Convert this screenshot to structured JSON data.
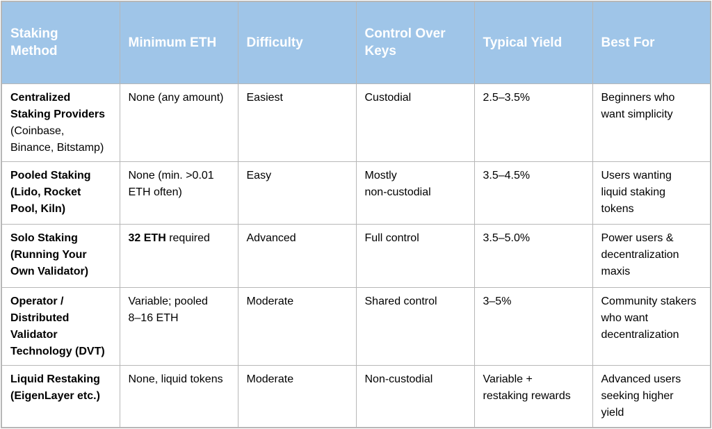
{
  "colors": {
    "header_bg": "#9fc5e8",
    "header_text": "#ffffff",
    "body_text": "#000000",
    "row_bg": "#ffffff",
    "grid_line": "#b7b7b7"
  },
  "table": {
    "columns": [
      {
        "id": "staking-method",
        "label": "Staking\nMethod"
      },
      {
        "id": "minimum-eth",
        "label": "Minimum ETH"
      },
      {
        "id": "difficulty",
        "label": "Difficulty"
      },
      {
        "id": "control-over-keys",
        "label": "Control Over\nKeys"
      },
      {
        "id": "typical-yield",
        "label": "Typical Yield"
      },
      {
        "id": "best-for",
        "label": "Best For"
      }
    ],
    "rows": [
      {
        "id": "centralized",
        "cells": [
          [
            {
              "t": "Centralized\nStaking Providers\n",
              "b": true
            },
            {
              "t": "(Coinbase,\nBinance, Bitstamp)",
              "b": false
            }
          ],
          [
            {
              "t": "None (any amount)",
              "b": false
            }
          ],
          [
            {
              "t": "Easiest",
              "b": false
            }
          ],
          [
            {
              "t": "Custodial",
              "b": false
            }
          ],
          [
            {
              "t": "2.5–3.5%",
              "b": false
            }
          ],
          [
            {
              "t": "Beginners who\nwant simplicity",
              "b": false
            }
          ]
        ]
      },
      {
        "id": "pooled",
        "cells": [
          [
            {
              "t": "Pooled Staking\n(Lido, Rocket\nPool, Kiln)",
              "b": true
            }
          ],
          [
            {
              "t": "None (min. >0.01\nETH often)",
              "b": false
            }
          ],
          [
            {
              "t": "Easy",
              "b": false
            }
          ],
          [
            {
              "t": "Mostly\nnon-custodial",
              "b": false
            }
          ],
          [
            {
              "t": "3.5–4.5%",
              "b": false
            }
          ],
          [
            {
              "t": "Users wanting\nliquid staking\ntokens",
              "b": false
            }
          ]
        ]
      },
      {
        "id": "solo",
        "cells": [
          [
            {
              "t": "Solo Staking\n(Running Your\nOwn Validator)",
              "b": true
            }
          ],
          [
            {
              "t": "32 ETH",
              "b": true
            },
            {
              "t": " required",
              "b": false
            }
          ],
          [
            {
              "t": "Advanced",
              "b": false
            }
          ],
          [
            {
              "t": "Full control",
              "b": false
            }
          ],
          [
            {
              "t": "3.5–5.0%",
              "b": false
            }
          ],
          [
            {
              "t": "Power users &\ndecentralization\nmaxis",
              "b": false
            }
          ]
        ]
      },
      {
        "id": "dvt",
        "cells": [
          [
            {
              "t": "Operator /\nDistributed\nValidator\nTechnology (DVT)",
              "b": true
            }
          ],
          [
            {
              "t": "Variable; pooled\n8–16 ETH",
              "b": false
            }
          ],
          [
            {
              "t": "Moderate",
              "b": false
            }
          ],
          [
            {
              "t": "Shared control",
              "b": false
            }
          ],
          [
            {
              "t": "3–5%",
              "b": false
            }
          ],
          [
            {
              "t": "Community stakers\nwho want\ndecentralization",
              "b": false
            }
          ]
        ]
      },
      {
        "id": "liquid-restaking",
        "cells": [
          [
            {
              "t": "Liquid Restaking\n(EigenLayer etc.)",
              "b": true
            }
          ],
          [
            {
              "t": "None, liquid tokens",
              "b": false
            }
          ],
          [
            {
              "t": "Moderate",
              "b": false
            }
          ],
          [
            {
              "t": "Non-custodial",
              "b": false
            }
          ],
          [
            {
              "t": "Variable +\nrestaking rewards",
              "b": false
            }
          ],
          [
            {
              "t": "Advanced users\nseeking higher\nyield",
              "b": false
            }
          ]
        ]
      }
    ]
  }
}
